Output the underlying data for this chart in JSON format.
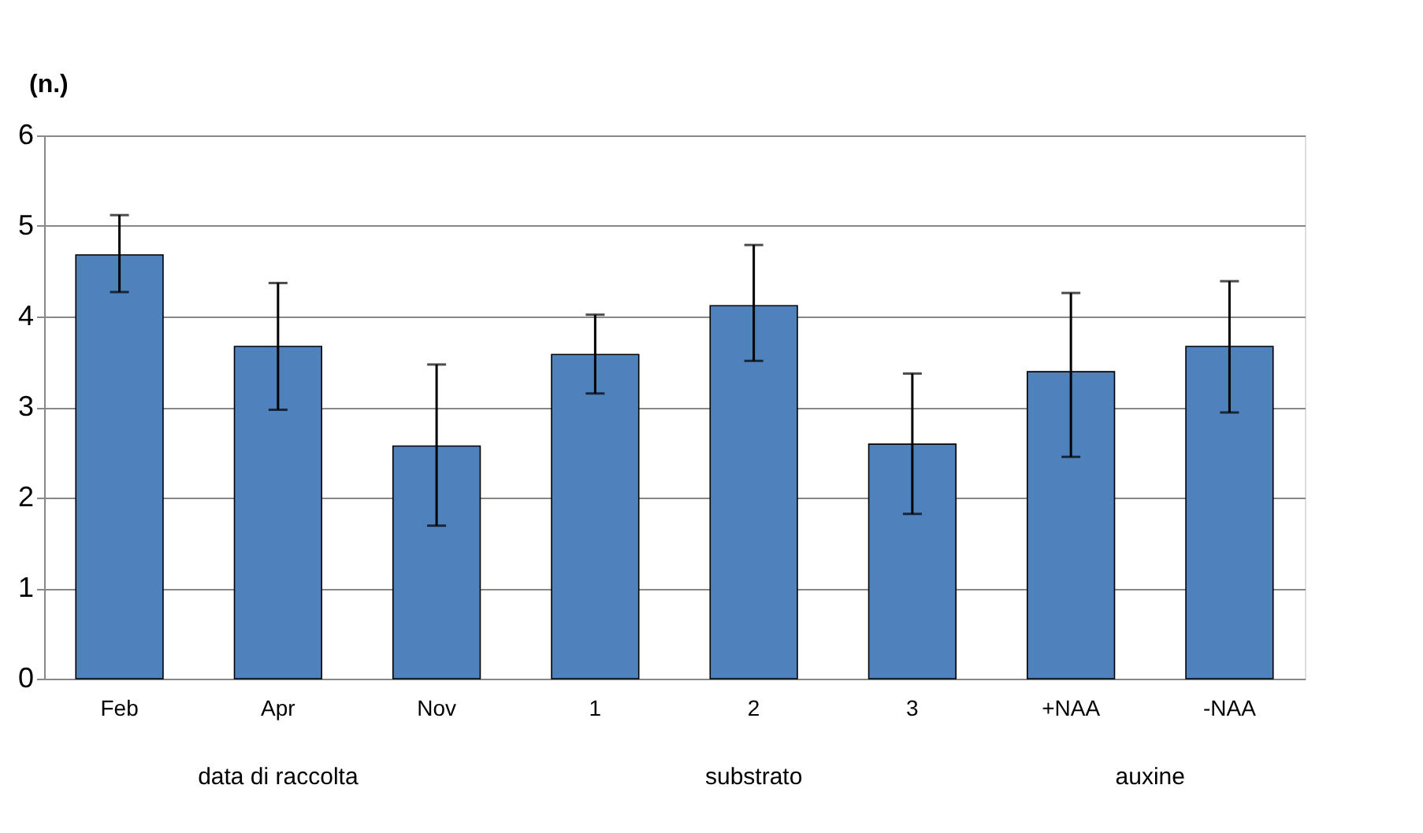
{
  "chart_data": {
    "type": "bar",
    "ylabel": "(n.)",
    "categories": [
      "Feb",
      "Apr",
      "Nov",
      "1",
      "2",
      "3",
      "+NAA",
      "-NAA"
    ],
    "values": [
      4.68,
      3.67,
      2.57,
      3.58,
      4.12,
      2.59,
      3.39,
      3.67
    ],
    "errors": [
      [
        4.27,
        5.12
      ],
      [
        2.97,
        4.37
      ],
      [
        1.69,
        3.47
      ],
      [
        3.15,
        4.02
      ],
      [
        3.51,
        4.79
      ],
      [
        1.82,
        3.37
      ],
      [
        2.45,
        4.26
      ],
      [
        2.94,
        4.39
      ]
    ],
    "color": "#4f81bd",
    "ylim": [
      0,
      6
    ],
    "yticks": [
      0,
      1,
      2,
      3,
      4,
      5,
      6
    ],
    "grid": "y",
    "annotations": [
      "data di raccolta",
      "substrato",
      "auxine"
    ]
  }
}
